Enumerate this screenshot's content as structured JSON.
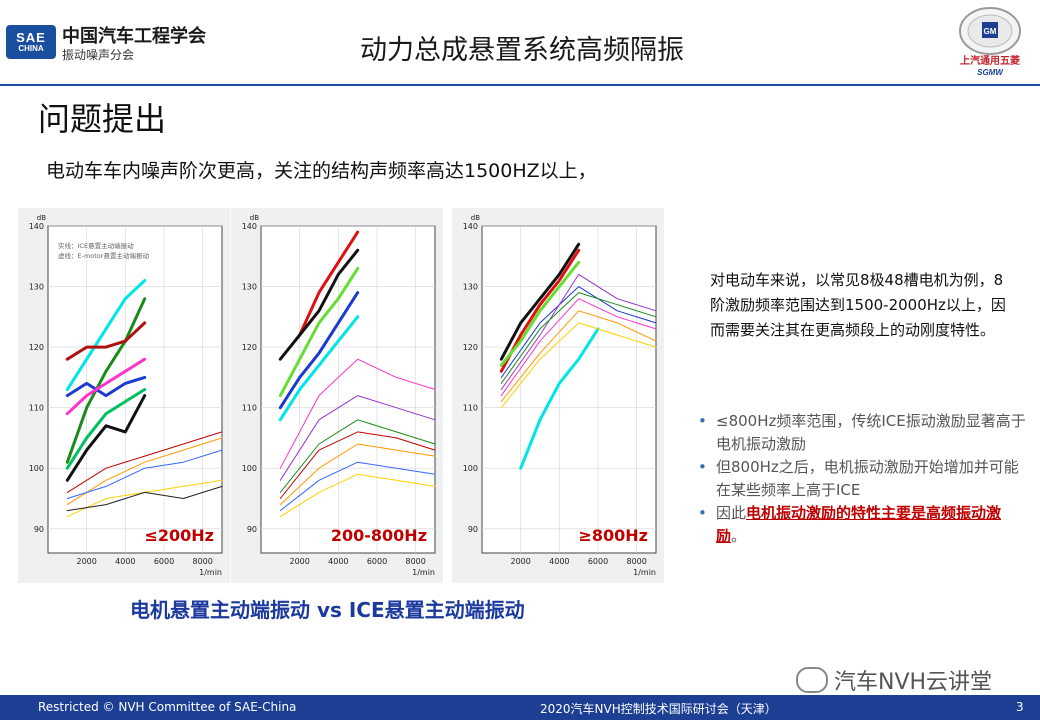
{
  "header": {
    "logo_text_1": "SAE",
    "logo_text_2": "CHINA",
    "org_name": "中国汽车工程学会",
    "org_sub": "振动噪声分会",
    "title": "动力总成悬置系统高频隔振",
    "right_logo_caption": "上汽通用五菱",
    "right_logo_sub": "SGMW",
    "right_logo_badge": "GM"
  },
  "section_title": "问题提出",
  "intro_text": "电动车车内噪声阶次更高，关注的结构声频率高达1500HZ以上，",
  "chart_common": {
    "y_unit": "dB",
    "x_unit": "1/min",
    "y_ticks": [
      "140",
      "130",
      "120",
      "110",
      "100",
      "90"
    ],
    "x_ticks": [
      "2000",
      "4000",
      "6000",
      "8000"
    ]
  },
  "chart_legend": [
    "实线：ICE悬置主动端振动",
    "虚线：E-motor悬置主动端振动"
  ],
  "chart_data": [
    {
      "type": "line",
      "label": "≤200Hz",
      "xlim": [
        0,
        9000
      ],
      "ylim": [
        86,
        140
      ],
      "series": [
        {
          "color": "#00e5e5",
          "width": 3,
          "x": [
            1000,
            2000,
            3000,
            4000,
            5000
          ],
          "y": [
            113,
            118,
            123,
            128,
            131
          ]
        },
        {
          "color": "#1a8a1a",
          "width": 3,
          "x": [
            1000,
            2000,
            3000,
            4000,
            5000
          ],
          "y": [
            101,
            110,
            116,
            121,
            128
          ]
        },
        {
          "color": "#b01010",
          "width": 3,
          "x": [
            1000,
            2000,
            3000,
            4000,
            5000
          ],
          "y": [
            118,
            120,
            120,
            121,
            124
          ]
        },
        {
          "color": "#1a3ad0",
          "width": 3,
          "x": [
            1000,
            2000,
            3000,
            4000,
            5000
          ],
          "y": [
            112,
            114,
            112,
            114,
            115
          ]
        },
        {
          "color": "#ff33cc",
          "width": 3,
          "x": [
            1000,
            2000,
            3000,
            4000,
            5000
          ],
          "y": [
            109,
            112,
            114,
            116,
            118
          ]
        },
        {
          "color": "#00c060",
          "width": 3,
          "x": [
            1000,
            2000,
            3000,
            4000,
            5000
          ],
          "y": [
            100,
            105,
            109,
            111,
            113
          ]
        },
        {
          "color": "#111111",
          "width": 3,
          "x": [
            1000,
            2000,
            3000,
            4000,
            5000
          ],
          "y": [
            98,
            103,
            107,
            106,
            112
          ]
        },
        {
          "color": "#c00000",
          "width": 1,
          "x": [
            1000,
            3000,
            5000,
            7000,
            9000
          ],
          "y": [
            96,
            100,
            102,
            104,
            106
          ]
        },
        {
          "color": "#ff9900",
          "width": 1,
          "x": [
            1000,
            3000,
            5000,
            7000,
            9000
          ],
          "y": [
            94,
            98,
            101,
            103,
            105
          ]
        },
        {
          "color": "#3366ff",
          "width": 1,
          "x": [
            1000,
            3000,
            5000,
            7000,
            9000
          ],
          "y": [
            95,
            97,
            100,
            101,
            103
          ]
        },
        {
          "color": "#ffd000",
          "width": 1,
          "x": [
            1000,
            3000,
            5000,
            7000,
            9000
          ],
          "y": [
            92,
            95,
            96,
            97,
            98
          ]
        },
        {
          "color": "#222222",
          "width": 1,
          "x": [
            1000,
            3000,
            5000,
            7000,
            9000
          ],
          "y": [
            93,
            94,
            96,
            95,
            97
          ]
        }
      ]
    },
    {
      "type": "line",
      "label": "200-800Hz",
      "xlim": [
        0,
        9000
      ],
      "ylim": [
        86,
        140
      ],
      "series": [
        {
          "color": "#e01010",
          "width": 3,
          "x": [
            2000,
            3000,
            4000,
            5000
          ],
          "y": [
            122,
            129,
            134,
            139
          ]
        },
        {
          "color": "#111111",
          "width": 3,
          "x": [
            1000,
            2000,
            3000,
            4000,
            5000
          ],
          "y": [
            118,
            122,
            126,
            132,
            136
          ]
        },
        {
          "color": "#66dd33",
          "width": 3,
          "x": [
            1000,
            2000,
            3000,
            4000,
            5000
          ],
          "y": [
            112,
            118,
            124,
            128,
            133
          ]
        },
        {
          "color": "#1a3ad0",
          "width": 3,
          "x": [
            1000,
            2000,
            3000,
            4000,
            5000
          ],
          "y": [
            110,
            115,
            119,
            124,
            129
          ]
        },
        {
          "color": "#00e5e5",
          "width": 3,
          "x": [
            1000,
            2000,
            3000,
            4000,
            5000
          ],
          "y": [
            108,
            113,
            117,
            121,
            125
          ]
        },
        {
          "color": "#ff33cc",
          "width": 1,
          "x": [
            1000,
            3000,
            5000,
            7000,
            9000
          ],
          "y": [
            100,
            112,
            118,
            115,
            113
          ]
        },
        {
          "color": "#9933cc",
          "width": 1,
          "x": [
            1000,
            3000,
            5000,
            7000,
            9000
          ],
          "y": [
            98,
            108,
            112,
            110,
            108
          ]
        },
        {
          "color": "#1a8a1a",
          "width": 1,
          "x": [
            1000,
            3000,
            5000,
            7000,
            9000
          ],
          "y": [
            96,
            104,
            108,
            106,
            104
          ]
        },
        {
          "color": "#ff9900",
          "width": 1,
          "x": [
            1000,
            3000,
            5000,
            7000,
            9000
          ],
          "y": [
            94,
            100,
            104,
            103,
            102
          ]
        },
        {
          "color": "#ffd000",
          "width": 1,
          "x": [
            1000,
            3000,
            5000,
            7000,
            9000
          ],
          "y": [
            92,
            96,
            99,
            98,
            97
          ]
        },
        {
          "color": "#3366ff",
          "width": 1,
          "x": [
            1000,
            3000,
            5000,
            7000,
            9000
          ],
          "y": [
            93,
            98,
            101,
            100,
            99
          ]
        },
        {
          "color": "#c00000",
          "width": 1,
          "x": [
            1000,
            3000,
            5000,
            7000,
            9000
          ],
          "y": [
            95,
            103,
            106,
            105,
            103
          ]
        }
      ]
    },
    {
      "type": "line",
      "label": "≥800Hz",
      "xlim": [
        0,
        9000
      ],
      "ylim": [
        86,
        140
      ],
      "series": [
        {
          "color": "#00e5e5",
          "width": 3,
          "x": [
            2000,
            3000,
            4000,
            5000,
            6000
          ],
          "y": [
            100,
            108,
            114,
            118,
            123
          ]
        },
        {
          "color": "#111111",
          "width": 3,
          "x": [
            1000,
            2000,
            3000,
            4000,
            5000
          ],
          "y": [
            118,
            124,
            128,
            132,
            137
          ]
        },
        {
          "color": "#e01010",
          "width": 3,
          "x": [
            1000,
            2000,
            3000,
            4000,
            5000
          ],
          "y": [
            116,
            122,
            127,
            131,
            136
          ]
        },
        {
          "color": "#66dd33",
          "width": 3,
          "x": [
            1000,
            2000,
            3000,
            4000,
            5000
          ],
          "y": [
            117,
            121,
            126,
            130,
            134
          ]
        },
        {
          "color": "#1a3ad0",
          "width": 1,
          "x": [
            1000,
            3000,
            5000,
            7000,
            9000
          ],
          "y": [
            115,
            124,
            130,
            126,
            124
          ]
        },
        {
          "color": "#9933cc",
          "width": 1,
          "x": [
            1000,
            3000,
            5000,
            7000,
            9000
          ],
          "y": [
            113,
            122,
            132,
            128,
            126
          ]
        },
        {
          "color": "#ff33cc",
          "width": 1,
          "x": [
            1000,
            3000,
            5000,
            7000,
            9000
          ],
          "y": [
            112,
            121,
            128,
            125,
            123
          ]
        },
        {
          "color": "#ffd000",
          "width": 1,
          "x": [
            1000,
            3000,
            5000,
            7000,
            9000
          ],
          "y": [
            110,
            118,
            124,
            122,
            120
          ]
        },
        {
          "color": "#ff9900",
          "width": 1,
          "x": [
            1000,
            3000,
            5000,
            7000,
            9000
          ],
          "y": [
            111,
            119,
            126,
            124,
            121
          ]
        },
        {
          "color": "#1a8a1a",
          "width": 1,
          "x": [
            1000,
            3000,
            5000,
            7000,
            9000
          ],
          "y": [
            114,
            123,
            129,
            127,
            125
          ]
        }
      ]
    }
  ],
  "chart_caption": "电机悬置主动端振动 vs ICE悬置主动端振动",
  "note": "对电动车来说，以常见8极48槽电机为例，8阶激励频率范围达到1500-2000Hz以上，因而需要关注其在更高频段上的动刚度特性。",
  "bullets": [
    "≤800Hz频率范围，传统ICE振动激励显著高于电机振动激励",
    "但800Hz之后，电机振动激励开始增加并可能在某些频率上高于ICE"
  ],
  "bullet3": {
    "prefix": "因此",
    "highlight": "电机振动激励的特性主要是高频振动激励",
    "suffix": "。"
  },
  "watermark": "汽车NVH云讲堂",
  "footer": {
    "left": "Restricted © NVH Committee of SAE-China",
    "center": "2020汽车NVH控制技术国际研讨会（天津）",
    "page": "3"
  },
  "colors": {
    "brand_blue": "#1c3f94",
    "caption_blue": "#1c3a9e",
    "highlight_red": "#c00000",
    "chart_label_red": "#c00000"
  }
}
